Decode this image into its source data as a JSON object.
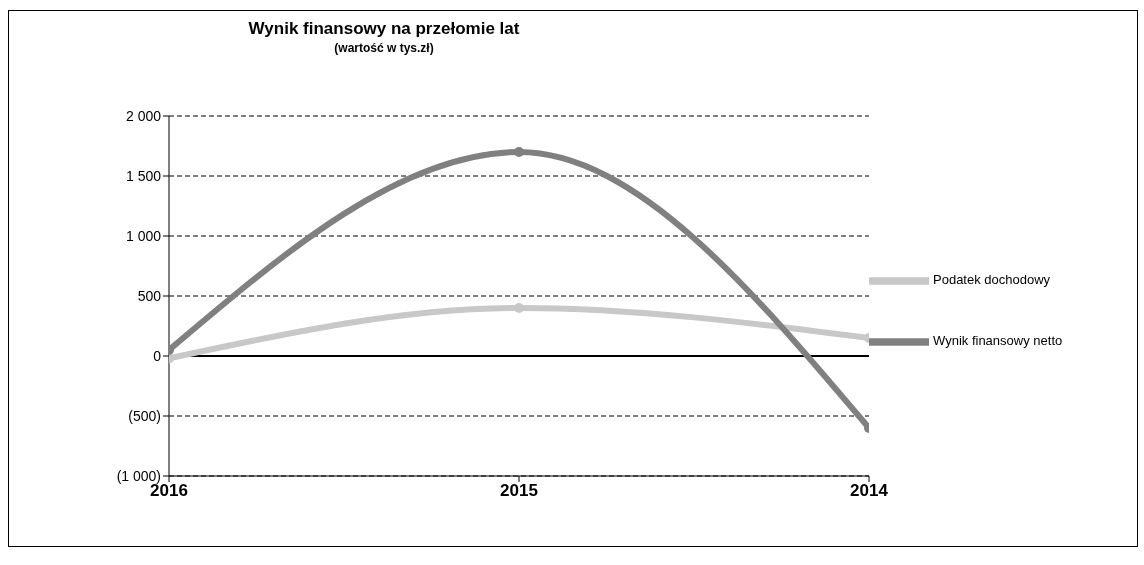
{
  "chart_data": {
    "type": "line",
    "title": "Wynik finansowy na przełomie lat",
    "subtitle": "(wartość w tys.zł)",
    "categories": [
      "2016",
      "2015",
      "2014"
    ],
    "series": [
      {
        "name": "Podatek dochodowy",
        "color": "#c8c8c8",
        "values": [
          -20,
          400,
          150
        ]
      },
      {
        "name": "Wynik finansowy netto",
        "color": "#808080",
        "values": [
          50,
          1700,
          -600
        ]
      }
    ],
    "ylim": [
      -1000,
      2000
    ],
    "yticks": [
      {
        "value": -1000,
        "label": "(1 000)"
      },
      {
        "value": -500,
        "label": "(500)"
      },
      0,
      500,
      {
        "value": 1000,
        "label": "1 000"
      },
      {
        "value": 1500,
        "label": "1 500"
      },
      {
        "value": 2000,
        "label": "2 000"
      }
    ],
    "ref_lines": [
      {
        "axis": "y",
        "value": 0,
        "color": "#000000"
      }
    ],
    "grid": "y",
    "legend": "right",
    "marker": "circle",
    "line_style": "solid"
  }
}
